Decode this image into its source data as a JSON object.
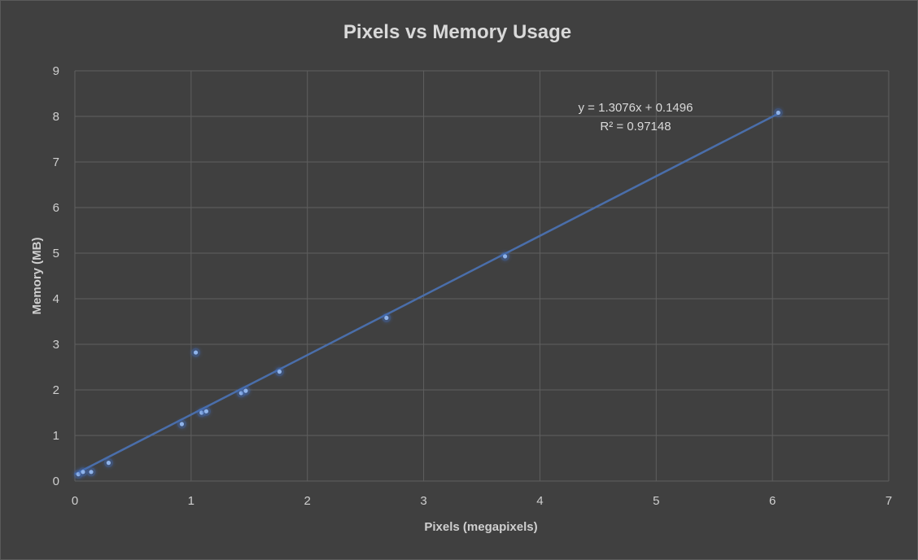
{
  "chart_data": {
    "type": "scatter",
    "title": "Pixels vs Memory Usage",
    "xlabel": "Pixels (megapixels)",
    "ylabel": "Memory (MB)",
    "xlim": [
      0,
      7
    ],
    "ylim": [
      0,
      9
    ],
    "x_ticks": [
      "0",
      "1",
      "2",
      "3",
      "4",
      "5",
      "6",
      "7"
    ],
    "y_ticks": [
      "0",
      "1",
      "2",
      "3",
      "4",
      "5",
      "6",
      "7",
      "8",
      "9"
    ],
    "grid": true,
    "legend": "none",
    "series": [
      {
        "x": [
          0.03,
          0.07,
          0.14,
          0.29,
          0.92,
          1.04,
          1.09,
          1.13,
          1.43,
          1.47,
          1.76,
          2.68,
          3.7,
          6.05
        ],
        "y": [
          0.15,
          0.2,
          0.2,
          0.4,
          1.25,
          2.82,
          1.5,
          1.53,
          1.93,
          1.98,
          2.4,
          3.58,
          4.93,
          8.08
        ],
        "color": "#8fb3ea"
      }
    ],
    "trendline": {
      "slope": 1.3076,
      "intercept": 0.1496,
      "x_range": [
        0,
        6.05
      ],
      "color": "#4a6eaa",
      "equation": "y = 1.3076x + 0.1496",
      "r_squared": "R² = 0.97148"
    },
    "colors": {
      "background": "#404040",
      "grid": "#5f5f5f",
      "text": "#d9d9d9"
    }
  }
}
